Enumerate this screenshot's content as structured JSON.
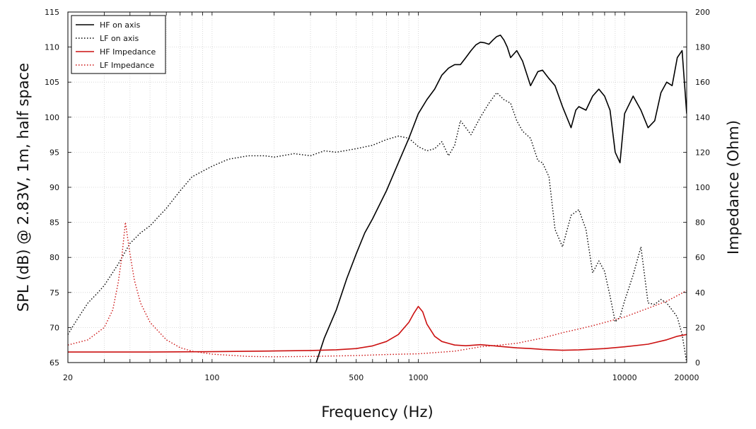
{
  "chart_data": {
    "type": "line",
    "xlabel": "Frequency (Hz)",
    "ylabel": "SPL (dB) @ 2.83V, 1m, half space",
    "y2label": "Impedance (Ohm)",
    "xscale": "log",
    "xlim": [
      20,
      20000
    ],
    "ylim": [
      65,
      115
    ],
    "y2lim": [
      0,
      200
    ],
    "grid": true,
    "legend_position": "top-left",
    "x_ticks": [
      20,
      100,
      500,
      1000,
      10000,
      20000
    ],
    "x_tick_labels": [
      "20",
      "100",
      "500",
      "1000",
      "10000",
      "20000"
    ],
    "y_ticks": [
      65,
      70,
      75,
      80,
      85,
      90,
      95,
      100,
      105,
      110,
      115
    ],
    "y_tick_labels": [
      "65",
      "70",
      "75",
      "80",
      "85",
      "90",
      "95",
      "100",
      "105",
      "110",
      "115"
    ],
    "y2_ticks": [
      0,
      20,
      40,
      60,
      80,
      100,
      120,
      140,
      160,
      180,
      200
    ],
    "y2_tick_labels": [
      "0",
      "20",
      "40",
      "60",
      "80",
      "100",
      "120",
      "140",
      "160",
      "180",
      "200"
    ],
    "series": [
      {
        "name": "HF on axis",
        "axis": "left",
        "color": "#000000",
        "style": "solid",
        "x": [
          320,
          350,
          400,
          450,
          500,
          550,
          600,
          700,
          800,
          900,
          1000,
          1100,
          1200,
          1300,
          1400,
          1500,
          1600,
          1700,
          1800,
          1900,
          2000,
          2100,
          2200,
          2300,
          2400,
          2500,
          2600,
          2700,
          2800,
          3000,
          3200,
          3500,
          3800,
          4000,
          4300,
          4600,
          5000,
          5500,
          5800,
          6000,
          6500,
          7000,
          7500,
          8000,
          8500,
          9000,
          9500,
          10000,
          11000,
          12000,
          13000,
          14000,
          15000,
          16000,
          17000,
          18000,
          19000,
          20000
        ],
        "y": [
          65,
          68.5,
          72.5,
          77,
          80.5,
          83.5,
          85.5,
          89.5,
          93.5,
          97,
          100.5,
          102.5,
          104,
          106,
          107,
          107.5,
          107.5,
          108.5,
          109.5,
          110.3,
          110.7,
          110.6,
          110.4,
          111,
          111.5,
          111.7,
          111,
          110,
          108.5,
          109.5,
          108,
          104.5,
          106.5,
          106.7,
          105.5,
          104.5,
          101.5,
          98.5,
          101,
          101.5,
          101,
          103,
          104,
          103,
          101,
          95,
          93.5,
          100.5,
          103,
          101,
          98.5,
          99.5,
          103.5,
          105,
          104.5,
          108.5,
          109.5,
          100.5
        ]
      },
      {
        "name": "LF on axis",
        "axis": "left",
        "color": "#000000",
        "style": "dotted",
        "x": [
          20,
          22,
          25,
          28,
          30,
          35,
          40,
          45,
          50,
          60,
          70,
          80,
          100,
          120,
          150,
          180,
          200,
          250,
          300,
          350,
          400,
          500,
          600,
          700,
          800,
          900,
          1000,
          1100,
          1200,
          1300,
          1400,
          1500,
          1600,
          1700,
          1800,
          2000,
          2200,
          2400,
          2600,
          2800,
          3000,
          3200,
          3500,
          3800,
          4000,
          4300,
          4600,
          5000,
          5500,
          6000,
          6500,
          7000,
          7500,
          8000,
          8500,
          9000,
          9500,
          10000,
          11000,
          12000,
          13000,
          14000,
          15000,
          16000,
          17000,
          18000,
          19000,
          20000
        ],
        "y": [
          69,
          71,
          73.5,
          75,
          76,
          79,
          82,
          83.5,
          84.5,
          87,
          89.5,
          91.5,
          93,
          94,
          94.5,
          94.5,
          94.3,
          94.8,
          94.5,
          95.2,
          95,
          95.5,
          96,
          96.8,
          97.3,
          97,
          95.8,
          95.2,
          95.5,
          96.5,
          94.5,
          96,
          99.5,
          98.5,
          97.5,
          100,
          102,
          103.5,
          102.5,
          102,
          99.5,
          98,
          97,
          93.8,
          93.5,
          91.5,
          84,
          81.5,
          86,
          86.8,
          84,
          77.8,
          79.5,
          78,
          74.5,
          70.8,
          71.5,
          73.8,
          77.5,
          81.5,
          73.5,
          73.3,
          74,
          73.5,
          72.5,
          71.5,
          69,
          65
        ]
      },
      {
        "name": "HF Impedance",
        "axis": "right",
        "color": "#cc1111",
        "style": "solid",
        "x": [
          20,
          50,
          100,
          200,
          300,
          400,
          500,
          600,
          700,
          800,
          900,
          950,
          1000,
          1050,
          1100,
          1200,
          1300,
          1500,
          1700,
          2000,
          2300,
          2500,
          3000,
          3500,
          4000,
          5000,
          6000,
          8000,
          10000,
          13000,
          16000,
          18000,
          20000
        ],
        "y": [
          6,
          6,
          6.2,
          6.6,
          6.9,
          7.3,
          8,
          9.5,
          12,
          16,
          23,
          28,
          32,
          29,
          22,
          15,
          12,
          10,
          9.6,
          10.2,
          9.6,
          9.2,
          8.4,
          8,
          7.5,
          7,
          7.2,
          8,
          9,
          10.5,
          13,
          15,
          16
        ]
      },
      {
        "name": "LF Impedance",
        "axis": "right",
        "color": "#cc1111",
        "style": "dotted",
        "x": [
          20,
          25,
          30,
          33,
          35,
          36.5,
          38,
          40,
          42,
          45,
          50,
          60,
          70,
          80,
          100,
          150,
          200,
          300,
          500,
          700,
          1000,
          1500,
          2000,
          2500,
          3000,
          4000,
          5000,
          7000,
          10000,
          13000,
          16000,
          20000
        ],
        "y": [
          10,
          13,
          20,
          30,
          45,
          60,
          80,
          62,
          47,
          34,
          23,
          13,
          8.5,
          6.5,
          4.8,
          3.5,
          3.3,
          3.5,
          4,
          4.6,
          5,
          6.5,
          9,
          10,
          11,
          14,
          17,
          21,
          26,
          31,
          35,
          41
        ]
      }
    ]
  }
}
